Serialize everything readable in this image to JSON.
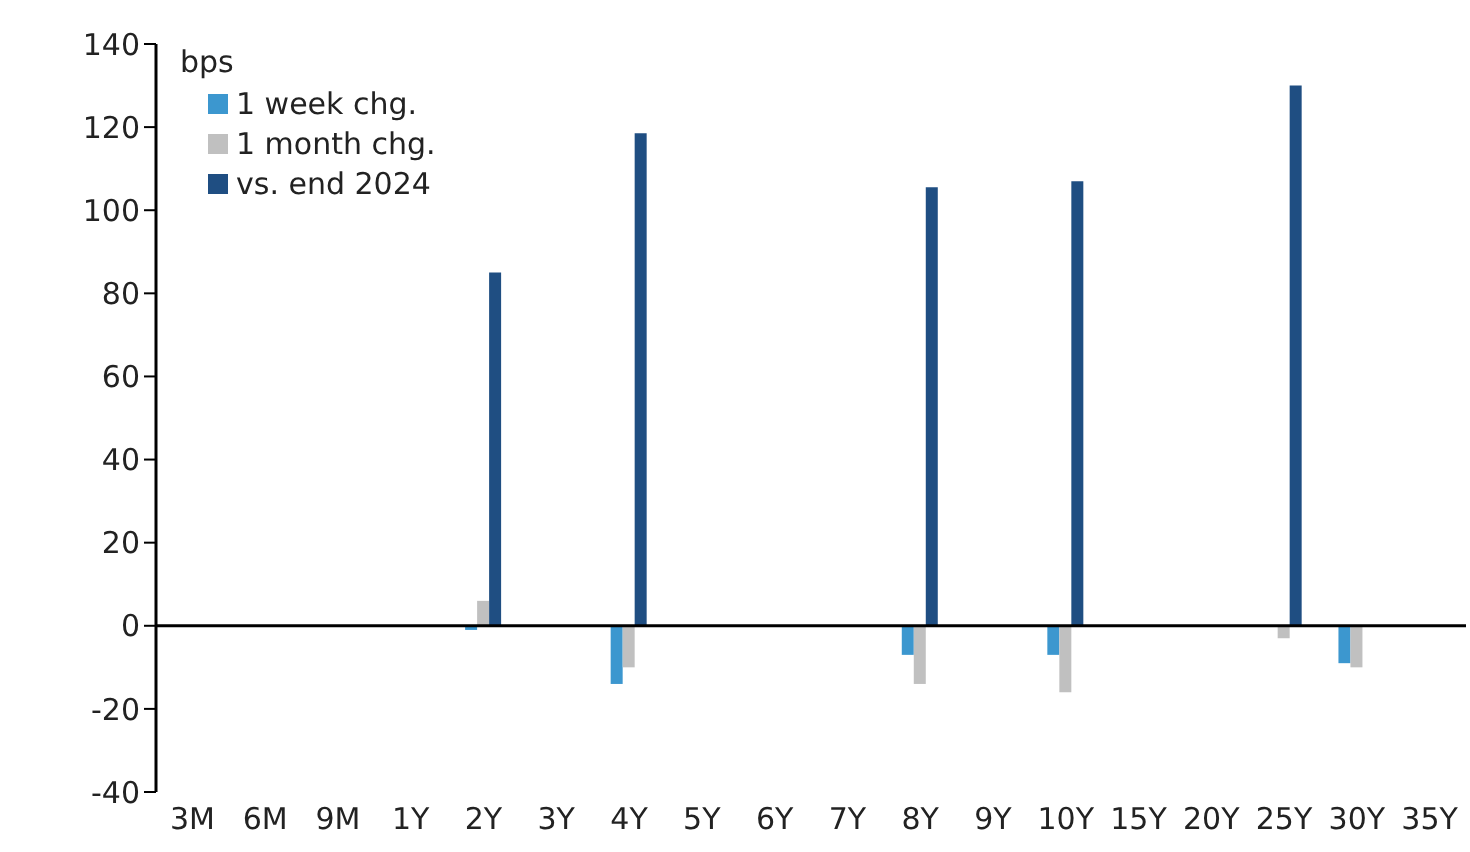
{
  "chart_data": {
    "type": "bar",
    "ylabel": "bps",
    "categories": [
      "3M",
      "6M",
      "9M",
      "1Y",
      "2Y",
      "3Y",
      "4Y",
      "5Y",
      "6Y",
      "7Y",
      "8Y",
      "9Y",
      "10Y",
      "15Y",
      "20Y",
      "25Y",
      "30Y",
      "35Y"
    ],
    "series": [
      {
        "name": "1 week chg.",
        "color": "#3c97cf",
        "values": [
          null,
          null,
          null,
          null,
          -1,
          null,
          -14,
          null,
          null,
          null,
          -7,
          null,
          -7,
          null,
          null,
          null,
          -9,
          null
        ]
      },
      {
        "name": "1 month chg.",
        "color": "#c0c0c0",
        "values": [
          null,
          null,
          null,
          null,
          6,
          null,
          -10,
          null,
          null,
          null,
          -14,
          null,
          -16,
          null,
          null,
          -3,
          -10,
          null
        ]
      },
      {
        "name": "vs. end 2024",
        "color": "#1f4e82",
        "values": [
          null,
          null,
          null,
          null,
          85,
          null,
          118.5,
          null,
          null,
          null,
          105.5,
          null,
          107,
          null,
          null,
          130,
          null,
          null
        ]
      }
    ],
    "ylim": [
      -40,
      140
    ],
    "yticks": [
      -40,
      -20,
      0,
      20,
      40,
      60,
      80,
      100,
      120,
      140
    ],
    "legend": "top left"
  }
}
